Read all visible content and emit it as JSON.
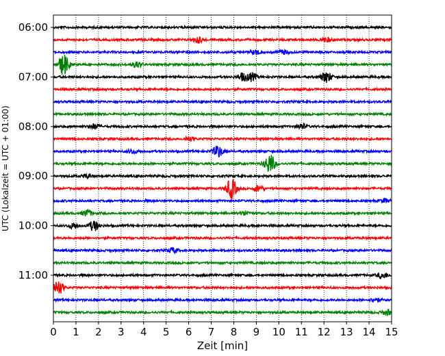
{
  "chart_data": {
    "type": "line",
    "title": "",
    "xlabel": "Zeit  [min]",
    "ylabel": "UTC (Lokalzeit = UTC + 01:00)",
    "xlim": [
      0,
      15
    ],
    "x_ticks": [
      0,
      1,
      2,
      3,
      4,
      5,
      6,
      7,
      8,
      9,
      10,
      11,
      12,
      13,
      14,
      15
    ],
    "y_tick_labels": [
      "06:00",
      "07:00",
      "08:00",
      "09:00",
      "10:00",
      "11:00"
    ],
    "grid": "vertical dotted lines at every minute",
    "trace_interval_minutes": 15,
    "color_cycle": [
      "#000000",
      "#ff0000",
      "#0000ff",
      "#008000"
    ],
    "traces": [
      {
        "start": "06:00",
        "events": []
      },
      {
        "start": "06:15",
        "events": [
          {
            "t": 6.4,
            "amp": 0.5
          },
          {
            "t": 12.1,
            "amp": 0.35
          }
        ]
      },
      {
        "start": "06:30",
        "events": [
          {
            "t": 9.0,
            "amp": 0.35
          },
          {
            "t": 10.2,
            "amp": 0.3
          }
        ]
      },
      {
        "start": "06:45",
        "events": [
          {
            "t": 0.45,
            "amp": 1.7
          },
          {
            "t": 3.7,
            "amp": 0.45
          }
        ]
      },
      {
        "start": "07:00",
        "events": [
          {
            "t": 8.4,
            "amp": 0.6
          },
          {
            "t": 8.8,
            "amp": 0.6
          },
          {
            "t": 12.1,
            "amp": 0.9
          }
        ]
      },
      {
        "start": "07:15",
        "events": []
      },
      {
        "start": "07:30",
        "events": []
      },
      {
        "start": "07:45",
        "events": []
      },
      {
        "start": "08:00",
        "events": [
          {
            "t": 1.8,
            "amp": 0.4
          },
          {
            "t": 11.0,
            "amp": 0.4
          }
        ]
      },
      {
        "start": "08:15",
        "events": [
          {
            "t": 6.0,
            "amp": 0.35
          }
        ]
      },
      {
        "start": "08:30",
        "events": [
          {
            "t": 7.3,
            "amp": 0.9
          },
          {
            "t": 3.5,
            "amp": 0.3
          }
        ]
      },
      {
        "start": "08:45",
        "events": [
          {
            "t": 9.6,
            "amp": 1.6
          }
        ]
      },
      {
        "start": "09:00",
        "events": [
          {
            "t": 1.5,
            "amp": 0.3
          }
        ]
      },
      {
        "start": "09:15",
        "events": [
          {
            "t": 7.9,
            "amp": 1.6
          },
          {
            "t": 9.1,
            "amp": 0.5
          }
        ]
      },
      {
        "start": "09:30",
        "events": [
          {
            "t": 14.7,
            "amp": 0.3
          }
        ]
      },
      {
        "start": "09:45",
        "events": [
          {
            "t": 1.5,
            "amp": 0.5
          },
          {
            "t": 8.5,
            "amp": 0.3
          }
        ]
      },
      {
        "start": "10:00",
        "events": [
          {
            "t": 0.9,
            "amp": 0.45
          },
          {
            "t": 1.8,
            "amp": 0.8
          }
        ]
      },
      {
        "start": "10:15",
        "events": []
      },
      {
        "start": "10:30",
        "events": [
          {
            "t": 5.3,
            "amp": 0.4
          }
        ]
      },
      {
        "start": "10:45",
        "events": []
      },
      {
        "start": "11:00",
        "events": [
          {
            "t": 14.6,
            "amp": 0.5
          }
        ]
      },
      {
        "start": "11:15",
        "events": [
          {
            "t": 0.2,
            "amp": 1.2
          }
        ]
      },
      {
        "start": "11:30",
        "events": [
          {
            "t": 14.3,
            "amp": 0.3
          }
        ]
      },
      {
        "start": "11:45",
        "events": [
          {
            "t": 14.8,
            "amp": 0.4
          }
        ]
      }
    ]
  }
}
